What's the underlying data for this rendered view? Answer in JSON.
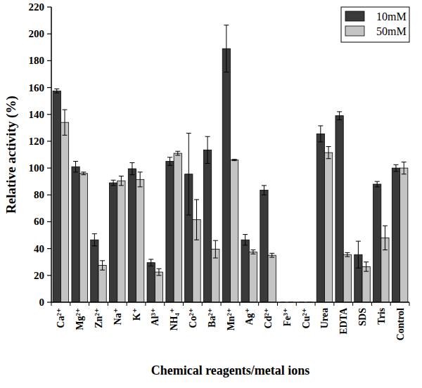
{
  "chart_data": {
    "type": "bar",
    "x_label": "Chemical reagents/metal ions",
    "y_label": "Relative activity (%)",
    "categories": [
      "Ca²⁺",
      "Mg²⁺",
      "Zn²⁺",
      "Na⁺",
      "K⁺",
      "Al³⁺",
      "NH₄⁺",
      "Co²⁺",
      "Ba²⁺",
      "Mn²⁺",
      "Ag⁺",
      "Cd²⁺",
      "Fe³⁺",
      "Cu²⁺",
      "Urea",
      "EDTA",
      "SDS",
      "Tris",
      "Control"
    ],
    "series": [
      {
        "name": "10mM",
        "color": "#3a3a3a",
        "values": [
          157.5,
          101,
          46.5,
          89,
          99.5,
          29.5,
          105,
          95.5,
          113.5,
          189,
          46.5,
          83.5,
          0,
          0,
          125.5,
          139,
          35.5,
          88,
          100
        ],
        "errors": [
          1.5,
          4,
          4.5,
          2,
          4.5,
          2.5,
          3,
          30.5,
          10,
          17.5,
          4,
          3.5,
          0,
          0,
          6,
          3,
          10,
          2,
          2.5
        ]
      },
      {
        "name": "50mM",
        "color": "#c4c4c4",
        "values": [
          134,
          96,
          27.5,
          90.5,
          91.5,
          22.5,
          111,
          61.5,
          39.5,
          106,
          37.5,
          35,
          0,
          0,
          111.5,
          35.5,
          26.5,
          48,
          100
        ],
        "errors": [
          9.5,
          1,
          3.5,
          3.5,
          5.5,
          2.5,
          1.5,
          15,
          6.5,
          0.5,
          1.5,
          1.5,
          0,
          0,
          4.5,
          1.5,
          3.5,
          9,
          4.5
        ]
      }
    ],
    "ylim": [
      0,
      220
    ],
    "yticks": [
      0,
      20,
      40,
      60,
      80,
      100,
      120,
      140,
      160,
      180,
      200,
      220
    ],
    "legend": "top-right"
  }
}
